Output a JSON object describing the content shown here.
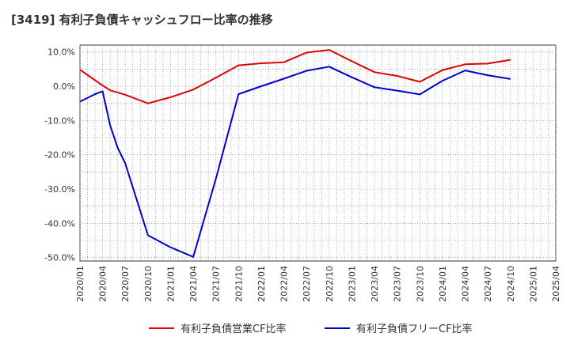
{
  "chart_data": {
    "type": "line",
    "title": "[3419]  有利子負債キャッシュフロー比率の推移",
    "x": [
      "2020/01",
      "2020/02",
      "2020/03",
      "2020/04",
      "2020/05",
      "2020/06",
      "2020/07",
      "2020/10",
      "2021/01",
      "2021/04",
      "2021/07",
      "2021/10",
      "2022/01",
      "2022/04",
      "2022/07",
      "2022/10",
      "2023/01",
      "2023/04",
      "2023/07",
      "2023/10",
      "2024/01",
      "2024/04",
      "2024/07",
      "2024/10"
    ],
    "x_ticks": [
      "2020/01",
      "2020/04",
      "2020/07",
      "2020/10",
      "2021/01",
      "2021/04",
      "2021/07",
      "2021/10",
      "2022/01",
      "2022/04",
      "2022/07",
      "2022/10",
      "2023/01",
      "2023/04",
      "2023/07",
      "2023/10",
      "2024/01",
      "2024/04",
      "2024/07",
      "2024/10",
      "2025/01",
      "2025/04"
    ],
    "y_ticks": [
      "10.0%",
      "0.0%",
      "-10.0%",
      "-20.0%",
      "-30.0%",
      "-40.0%",
      "-50.0%"
    ],
    "ylim": [
      -51,
      12
    ],
    "grid": true,
    "legend_position": "bottom",
    "series": [
      {
        "name": "有利子負債営業CF比率",
        "color": "#e00000",
        "points": [
          {
            "x": "2020/01",
            "y": 4.8
          },
          {
            "x": "2020/04",
            "y": 0.2
          },
          {
            "x": "2020/05",
            "y": -1.2
          },
          {
            "x": "2020/07",
            "y": -2.5
          },
          {
            "x": "2020/10",
            "y": -5.0
          },
          {
            "x": "2021/01",
            "y": -3.2
          },
          {
            "x": "2021/04",
            "y": -1.0
          },
          {
            "x": "2021/07",
            "y": 2.5
          },
          {
            "x": "2021/10",
            "y": 6.1
          },
          {
            "x": "2022/01",
            "y": 6.7
          },
          {
            "x": "2022/04",
            "y": 7.0
          },
          {
            "x": "2022/07",
            "y": 9.8
          },
          {
            "x": "2022/10",
            "y": 10.6
          },
          {
            "x": "2023/01",
            "y": 7.3
          },
          {
            "x": "2023/04",
            "y": 4.1
          },
          {
            "x": "2023/07",
            "y": 3.0
          },
          {
            "x": "2023/10",
            "y": 1.3
          },
          {
            "x": "2024/01",
            "y": 4.7
          },
          {
            "x": "2024/04",
            "y": 6.4
          },
          {
            "x": "2024/07",
            "y": 6.6
          },
          {
            "x": "2024/10",
            "y": 7.7
          }
        ]
      },
      {
        "name": "有利子負債フリーCF比率",
        "color": "#0000cc",
        "points": [
          {
            "x": "2020/01",
            "y": -4.5
          },
          {
            "x": "2020/03",
            "y": -2.3
          },
          {
            "x": "2020/04",
            "y": -1.5
          },
          {
            "x": "2020/05",
            "y": -11.5
          },
          {
            "x": "2020/06",
            "y": -18.0
          },
          {
            "x": "2020/07",
            "y": -22.5
          },
          {
            "x": "2020/10",
            "y": -43.5
          },
          {
            "x": "2021/01",
            "y": -47.0
          },
          {
            "x": "2021/04",
            "y": -49.8
          },
          {
            "x": "2021/07",
            "y": -27.0
          },
          {
            "x": "2021/10",
            "y": -2.3
          },
          {
            "x": "2022/01",
            "y": 0.0
          },
          {
            "x": "2022/04",
            "y": 2.2
          },
          {
            "x": "2022/07",
            "y": 4.5
          },
          {
            "x": "2022/10",
            "y": 5.7
          },
          {
            "x": "2023/01",
            "y": 2.6
          },
          {
            "x": "2023/04",
            "y": -0.3
          },
          {
            "x": "2023/07",
            "y": -1.3
          },
          {
            "x": "2023/10",
            "y": -2.4
          },
          {
            "x": "2024/01",
            "y": 1.6
          },
          {
            "x": "2024/04",
            "y": 4.6
          },
          {
            "x": "2024/07",
            "y": 3.2
          },
          {
            "x": "2024/10",
            "y": 2.1
          }
        ]
      }
    ]
  }
}
